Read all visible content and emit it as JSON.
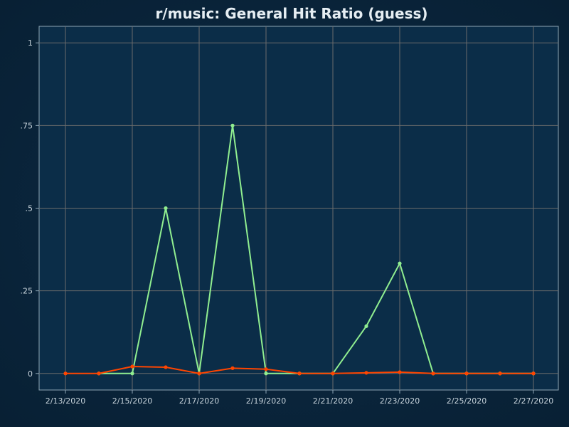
{
  "chart_data": {
    "type": "line",
    "title": "r/music: General Hit Ratio (guess)",
    "xlabel": "",
    "ylabel": "",
    "x": [
      "2/13/2020",
      "2/14/2020",
      "2/15/2020",
      "2/16/2020",
      "2/17/2020",
      "2/18/2020",
      "2/19/2020",
      "2/20/2020",
      "2/21/2020",
      "2/22/2020",
      "2/23/2020",
      "2/24/2020",
      "2/25/2020",
      "2/26/2020",
      "2/27/2020"
    ],
    "x_tick_labels": [
      "2/13/2020",
      "2/15/2020",
      "2/17/2020",
      "2/19/2020",
      "2/21/2020",
      "2/23/2020",
      "2/25/2020",
      "2/27/2020"
    ],
    "ylim": [
      -0.05,
      1.05
    ],
    "y_ticks": [
      0,
      0.25,
      0.5,
      0.75,
      1
    ],
    "y_tick_labels": [
      "0",
      ".25",
      ".5",
      ".75",
      "1"
    ],
    "grid": true,
    "series": [
      {
        "color": "#90ee90",
        "values": [
          null,
          0,
          0,
          0.5,
          0,
          0.75,
          0,
          0,
          0,
          0.143,
          0.333,
          0,
          0,
          0,
          0
        ]
      },
      {
        "color": "#ff4500",
        "values": [
          0,
          0,
          0.021,
          0.019,
          0,
          0.016,
          0.013,
          0,
          0,
          0.002,
          0.004,
          0,
          0,
          0,
          0
        ]
      }
    ]
  },
  "colors": {
    "background": "#0b2d48",
    "page": "#082034",
    "grid": "#6b6b6b",
    "text": "#c8d4dc",
    "title": "#e6eef3",
    "frame": "#8fa6b5"
  }
}
